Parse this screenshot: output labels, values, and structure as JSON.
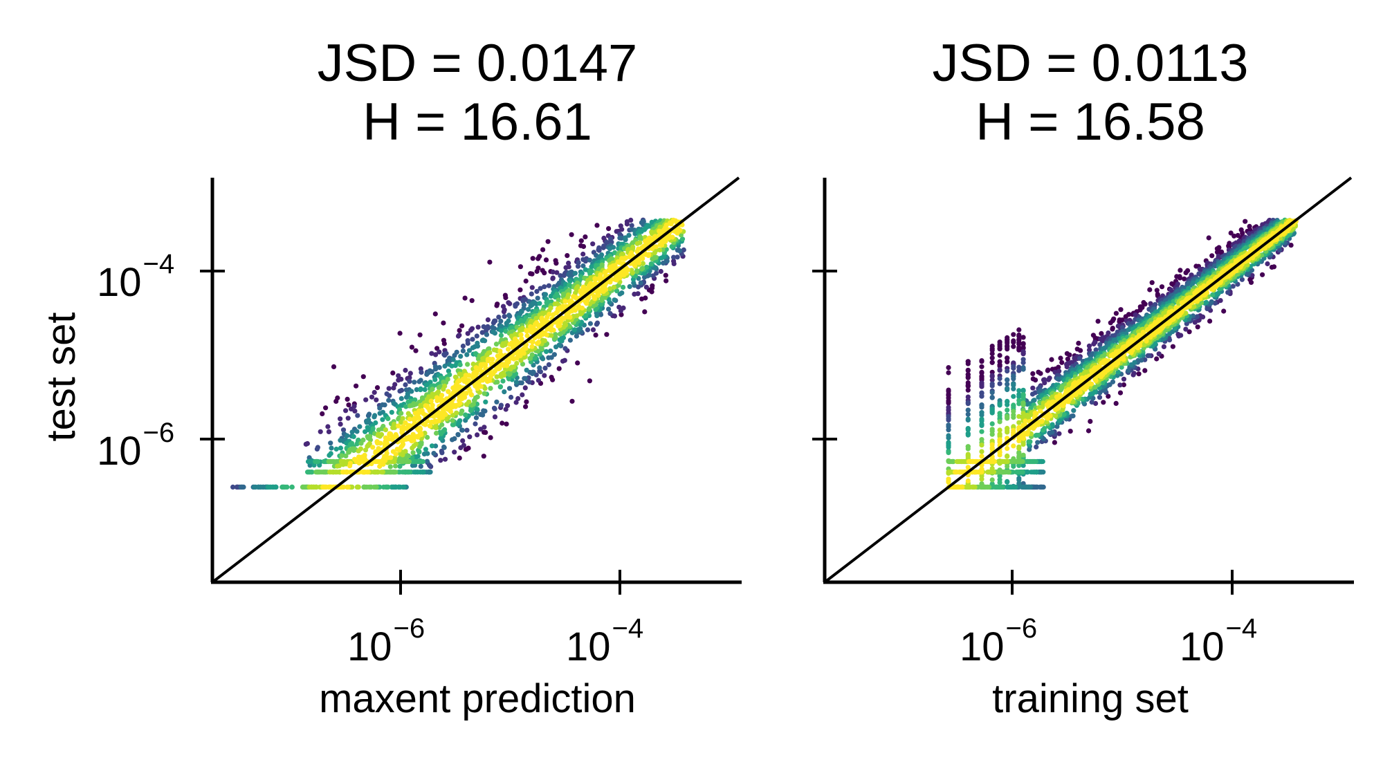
{
  "chart_data": [
    {
      "type": "scatter",
      "title_lines": [
        "JSD = 0.0147",
        "H = 16.61"
      ],
      "xlabel": "maxent prediction",
      "ylabel": "test set",
      "xscale": "log",
      "yscale": "log",
      "xlim": [
        1e-08,
        0.001
      ],
      "ylim": [
        1e-08,
        0.001
      ],
      "xticks": [
        {
          "value": 1e-06,
          "base": "10",
          "exp": "−6"
        },
        {
          "value": 0.0001,
          "base": "10",
          "exp": "−4"
        }
      ],
      "yticks": [
        {
          "value": 1e-06,
          "base": "10",
          "exp": "−6"
        },
        {
          "value": 0.0001,
          "base": "10",
          "exp": "−4"
        }
      ],
      "reference_line": "y = x",
      "colormap": "viridis (point density)",
      "grid": false,
      "legend": "none",
      "quantized_test_levels": [
        1.5e-07,
        2.3e-07,
        3.1e-07
      ],
      "test_level_x_ranges": [
        [
          1.5e-08,
          7e-07
        ],
        [
          8e-08,
          1.2e-06
        ],
        [
          8e-08,
          1e-06
        ]
      ],
      "x_range": [
        1.5e-08,
        0.0003
      ],
      "y_range": [
        1.5e-07,
        0.0003
      ]
    },
    {
      "type": "scatter",
      "title_lines": [
        "JSD = 0.0113",
        "H = 16.58"
      ],
      "xlabel": "training set",
      "ylabel": "",
      "xscale": "log",
      "yscale": "log",
      "xlim": [
        1e-08,
        0.001
      ],
      "ylim": [
        1e-08,
        0.001
      ],
      "xticks": [
        {
          "value": 1e-06,
          "base": "10",
          "exp": "−6"
        },
        {
          "value": 0.0001,
          "base": "10",
          "exp": "−4"
        }
      ],
      "yticks": [
        {
          "value": 1e-06
        },
        {
          "value": 0.0001
        }
      ],
      "reference_line": "y = x",
      "colormap": "viridis (point density)",
      "grid": false,
      "legend": "none",
      "quantized_train_levels": [
        1.5e-07,
        2.3e-07,
        3.1e-07,
        3.9e-07,
        4.6e-07,
        5.4e-07,
        6.2e-07,
        7e-07,
        7.7e-07
      ],
      "quantized_test_levels": [
        1.5e-07,
        2.3e-07,
        3.1e-07
      ],
      "x_range": [
        1.5e-07,
        0.0003
      ],
      "y_range": [
        1.5e-07,
        0.0003
      ]
    }
  ]
}
